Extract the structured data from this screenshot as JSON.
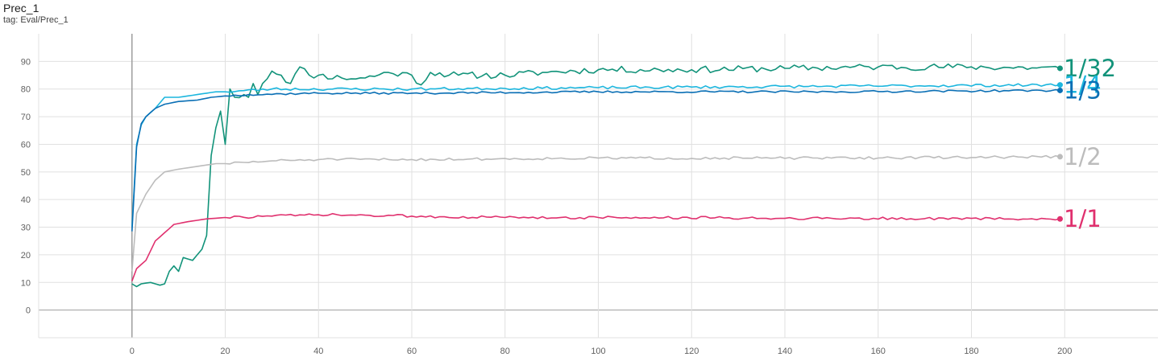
{
  "header": {
    "title": "Prec_1",
    "subtitle": "tag: Eval/Prec_1"
  },
  "chart_data": {
    "type": "line",
    "title": "Prec_1",
    "subtitle": "tag: Eval/Prec_1",
    "xlim": [
      -20,
      220
    ],
    "ylim": [
      -10,
      100
    ],
    "x_ticks": [
      0,
      20,
      40,
      60,
      80,
      100,
      120,
      140,
      160,
      180,
      200
    ],
    "y_ticks": [
      0,
      10,
      20,
      30,
      40,
      50,
      60,
      70,
      80,
      90
    ],
    "grid": true,
    "legend": "end-of-line labels",
    "x_max": 199,
    "series": [
      {
        "name": "1/32",
        "color": "#12937a",
        "key": [
          [
            0,
            9.5
          ],
          [
            1,
            8.5
          ],
          [
            2,
            9.5
          ],
          [
            4,
            10
          ],
          [
            6,
            9
          ],
          [
            7,
            9.5
          ],
          [
            8,
            14
          ],
          [
            9,
            16
          ],
          [
            10,
            14
          ],
          [
            11,
            19
          ],
          [
            12,
            18.5
          ],
          [
            13,
            18
          ],
          [
            14,
            20
          ],
          [
            15,
            22
          ],
          [
            16,
            27
          ],
          [
            17,
            56
          ],
          [
            18,
            66
          ],
          [
            19,
            72
          ],
          [
            20,
            60
          ],
          [
            21,
            80
          ],
          [
            22,
            77
          ],
          [
            24,
            78
          ],
          [
            25,
            77
          ],
          [
            26,
            82
          ],
          [
            27,
            78
          ],
          [
            28,
            82
          ],
          [
            30,
            86.5
          ],
          [
            32,
            85
          ],
          [
            34,
            82
          ],
          [
            36,
            88
          ],
          [
            38,
            85
          ],
          [
            40,
            85
          ],
          [
            45,
            84
          ],
          [
            50,
            84
          ],
          [
            55,
            86
          ],
          [
            60,
            85
          ],
          [
            62,
            81.5
          ],
          [
            64,
            86
          ],
          [
            70,
            85
          ],
          [
            80,
            85
          ],
          [
            88,
            86
          ],
          [
            100,
            87
          ],
          [
            120,
            87
          ],
          [
            140,
            87.5
          ],
          [
            160,
            88
          ],
          [
            180,
            88
          ],
          [
            199,
            87.5
          ]
        ],
        "noise": 1.2,
        "seed": 11
      },
      {
        "name": "1/4",
        "color": "#1cb6de",
        "key": [
          [
            0,
            30
          ],
          [
            1,
            60
          ],
          [
            2,
            67
          ],
          [
            3,
            70
          ],
          [
            5,
            73
          ],
          [
            7,
            77
          ],
          [
            10,
            77
          ],
          [
            14,
            78
          ],
          [
            18,
            79
          ],
          [
            20,
            79
          ],
          [
            30,
            80
          ],
          [
            60,
            80
          ],
          [
            100,
            80.5
          ],
          [
            150,
            81
          ],
          [
            199,
            81.5
          ]
        ],
        "noise": 0.5,
        "seed": 23
      },
      {
        "name": "1/3",
        "color": "#0a6fb5",
        "key": [
          [
            0,
            28.5
          ],
          [
            1,
            59
          ],
          [
            2,
            67.5
          ],
          [
            3,
            70
          ],
          [
            5,
            73
          ],
          [
            7,
            74.5
          ],
          [
            10,
            75.5
          ],
          [
            14,
            76
          ],
          [
            17,
            77
          ],
          [
            20,
            77.5
          ],
          [
            25,
            78
          ],
          [
            40,
            78.5
          ],
          [
            60,
            78.5
          ],
          [
            100,
            79
          ],
          [
            150,
            79
          ],
          [
            199,
            79.5
          ]
        ],
        "noise": 0.35,
        "seed": 37
      },
      {
        "name": "1/2",
        "color": "#bcbcbc",
        "key": [
          [
            0,
            14
          ],
          [
            1,
            35
          ],
          [
            3,
            42
          ],
          [
            5,
            47
          ],
          [
            7,
            50
          ],
          [
            10,
            51
          ],
          [
            14,
            52
          ],
          [
            18,
            53
          ],
          [
            20,
            53
          ],
          [
            30,
            54
          ],
          [
            40,
            54.5
          ],
          [
            60,
            54.5
          ],
          [
            100,
            55
          ],
          [
            150,
            55
          ],
          [
            199,
            55.5
          ]
        ],
        "noise": 0.45,
        "seed": 51
      },
      {
        "name": "1/1",
        "color": "#e0306e",
        "key": [
          [
            0,
            10.5
          ],
          [
            1,
            15
          ],
          [
            3,
            18
          ],
          [
            5,
            25
          ],
          [
            7,
            28
          ],
          [
            9,
            31
          ],
          [
            12,
            32
          ],
          [
            16,
            33
          ],
          [
            20,
            33.5
          ],
          [
            30,
            34
          ],
          [
            40,
            34.5
          ],
          [
            60,
            34
          ],
          [
            80,
            33.5
          ],
          [
            100,
            33.5
          ],
          [
            150,
            33.2
          ],
          [
            199,
            33
          ]
        ],
        "noise": 0.5,
        "seed": 73
      }
    ]
  }
}
